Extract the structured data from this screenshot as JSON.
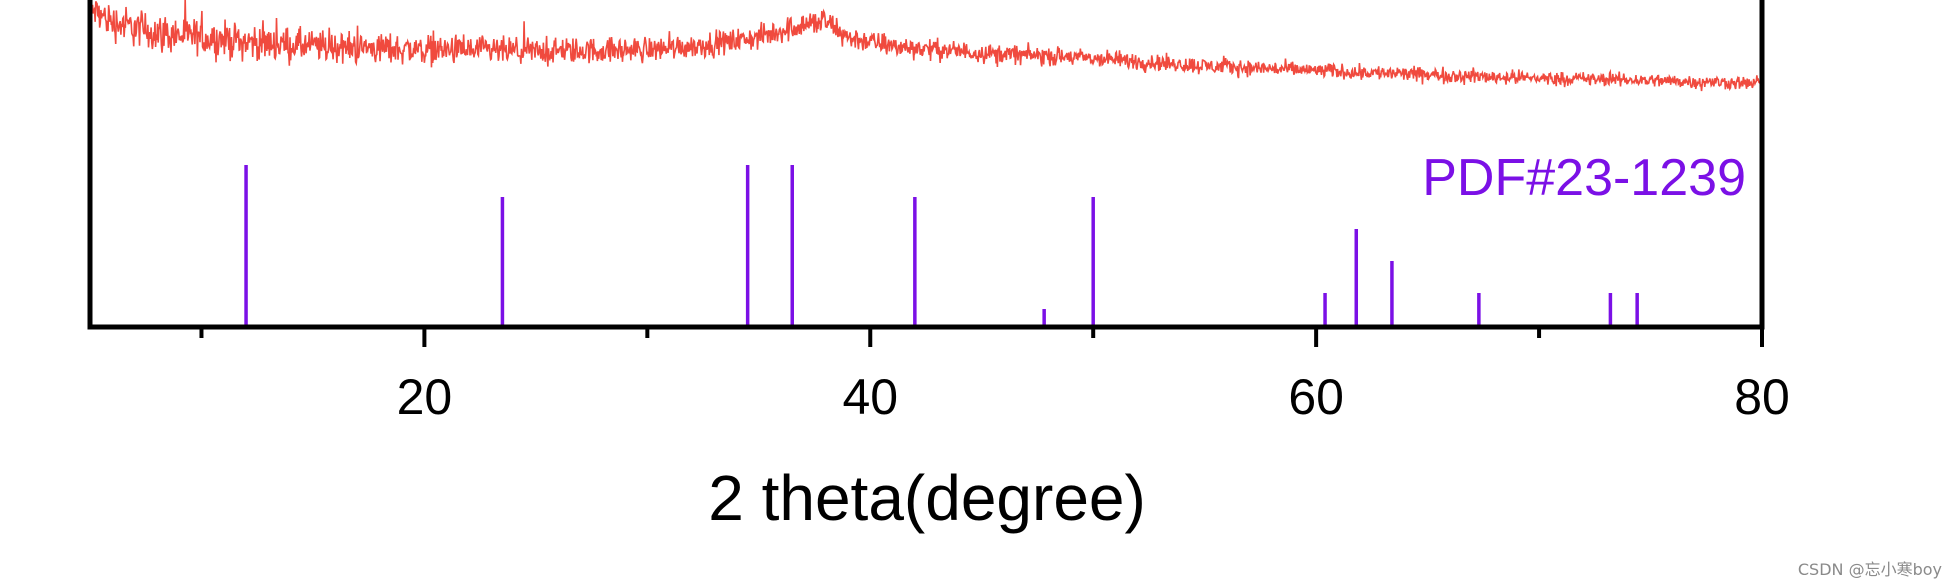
{
  "chart_data": {
    "type": "line",
    "title": "",
    "xlabel": "2 theta(degree)",
    "ylabel": "",
    "xlim": [
      5,
      80
    ],
    "x_major_ticks": [
      20,
      40,
      60,
      80
    ],
    "x_minor_ticks": [
      10,
      30,
      50,
      70
    ],
    "grid": false,
    "colors": {
      "pattern": "#f04a3e",
      "reference": "#7b10e6",
      "axes": "#000000"
    },
    "pattern_envelope": {
      "x": [
        5,
        6,
        8,
        10,
        12,
        15,
        20,
        25,
        30,
        33,
        35,
        37,
        38,
        39,
        41,
        45,
        50,
        55,
        60,
        65,
        70,
        75,
        80
      ],
      "baseline": [
        0.92,
        0.8,
        0.7,
        0.66,
        0.62,
        0.58,
        0.55,
        0.53,
        0.55,
        0.6,
        0.66,
        0.78,
        0.8,
        0.66,
        0.58,
        0.52,
        0.47,
        0.4,
        0.36,
        0.32,
        0.29,
        0.27,
        0.24
      ],
      "noise": [
        0.2,
        0.25,
        0.26,
        0.24,
        0.24,
        0.22,
        0.2,
        0.18,
        0.17,
        0.16,
        0.16,
        0.18,
        0.19,
        0.16,
        0.14,
        0.13,
        0.12,
        0.11,
        0.1,
        0.1,
        0.09,
        0.09,
        0.09
      ]
    },
    "reference_pattern": {
      "name": "PDF#23-1239",
      "positions": [
        12.0,
        23.5,
        34.5,
        36.5,
        42.0,
        47.8,
        50.0,
        60.4,
        61.8,
        63.4,
        67.3,
        73.2,
        74.4
      ],
      "intensities": [
        100,
        80,
        100,
        100,
        80,
        10,
        80,
        20,
        60,
        40,
        20,
        20,
        20
      ]
    }
  },
  "watermark": "CSDN @忘小寒boy"
}
